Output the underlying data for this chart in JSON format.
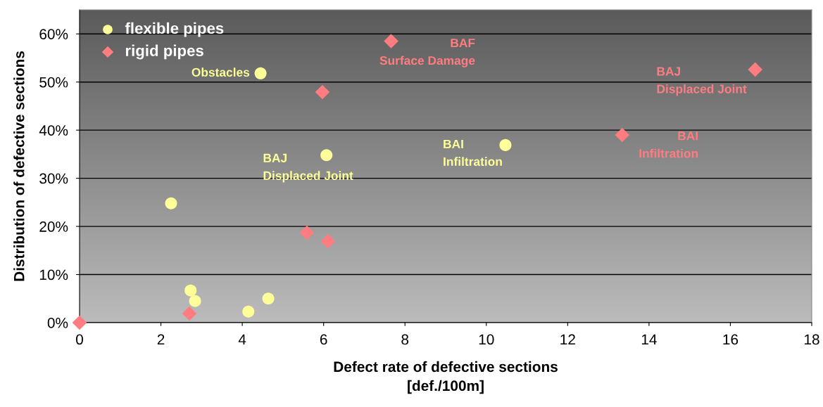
{
  "chart_data": {
    "type": "scatter",
    "xlabel": "Defect rate of defective sections\n[def./100m]",
    "ylabel": "Distribution of defective sections",
    "series": [
      {
        "name": "flexible pipes",
        "color": "#ffff99",
        "marker": "circle",
        "x": [
          2.25,
          2.73,
          2.84,
          4.15,
          4.64,
          4.45,
          6.07,
          10.47
        ],
        "values": [
          24.8,
          6.7,
          4.5,
          2.3,
          5.0,
          51.8,
          34.8,
          36.9
        ]
      },
      {
        "name": "rigid pipes",
        "color": "#ff7c80",
        "marker": "diamond",
        "x": [
          0,
          2.7,
          5.59,
          6.11,
          5.97,
          7.66,
          13.34,
          16.61
        ],
        "values": [
          0,
          1.9,
          18.7,
          16.9,
          47.9,
          58.5,
          39.0,
          52.6
        ]
      }
    ],
    "annotations": [
      {
        "text": "Obstacles",
        "x": 4.45,
        "y": 51.8
      },
      {
        "text": "BAJ\nDisplaced Joint",
        "x": 6.07,
        "y": 34.8
      },
      {
        "text": "BAI\nInfiltration",
        "x": 10.47,
        "y": 36.9
      },
      {
        "text": "BAF\nSurface Damage",
        "x": 7.66,
        "y": 58.5
      },
      {
        "text": "BAJ\nDisplaced Joint",
        "x": 16.61,
        "y": 52.6
      },
      {
        "text": "BAI\nInfiltration",
        "x": 13.34,
        "y": 39.0
      }
    ],
    "xlim": [
      0,
      18
    ],
    "xticks": [
      0,
      2,
      4,
      6,
      8,
      10,
      12,
      14,
      16,
      18
    ],
    "ylim": [
      0,
      65
    ],
    "yticks": [
      {
        "value": 0,
        "label": "0%"
      },
      {
        "value": 10,
        "label": "10%"
      },
      {
        "value": 20,
        "label": "20%"
      },
      {
        "value": 30,
        "label": "30%"
      },
      {
        "value": 40,
        "label": "40%"
      },
      {
        "value": 50,
        "label": "50%"
      },
      {
        "value": 60,
        "label": "60%"
      }
    ],
    "grid": "y",
    "legend": "top left"
  }
}
